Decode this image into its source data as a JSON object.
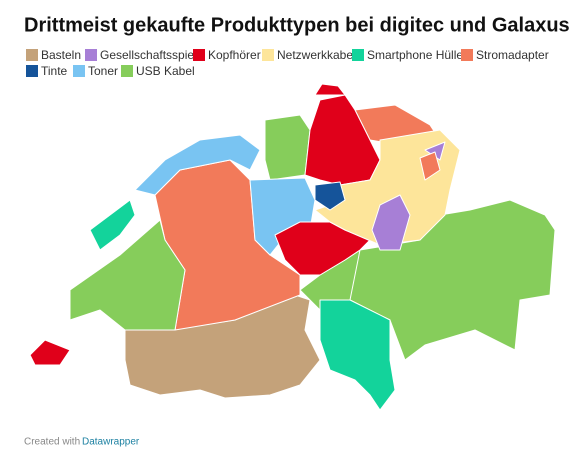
{
  "title": "Drittmeist gekaufte Produkttypen bei digitec und Galaxus",
  "legend": [
    {
      "label": "Basteln",
      "color": "#c4a27a"
    },
    {
      "label": "Gesellschaftsspiel",
      "color": "#a77fd6"
    },
    {
      "label": "Kopfhörer",
      "color": "#e0001a"
    },
    {
      "label": "Netzwerkkabel",
      "color": "#fde59a"
    },
    {
      "label": "Smartphone Hülle",
      "color": "#13d39b"
    },
    {
      "label": "Stromadapter",
      "color": "#f27a5a"
    },
    {
      "label": "Tinte",
      "color": "#15549a"
    },
    {
      "label": "Toner",
      "color": "#79c4f2"
    },
    {
      "label": "USB Kabel",
      "color": "#86cd5b"
    }
  ],
  "footer": {
    "text": "Created with",
    "link": "Datawrapper"
  }
}
